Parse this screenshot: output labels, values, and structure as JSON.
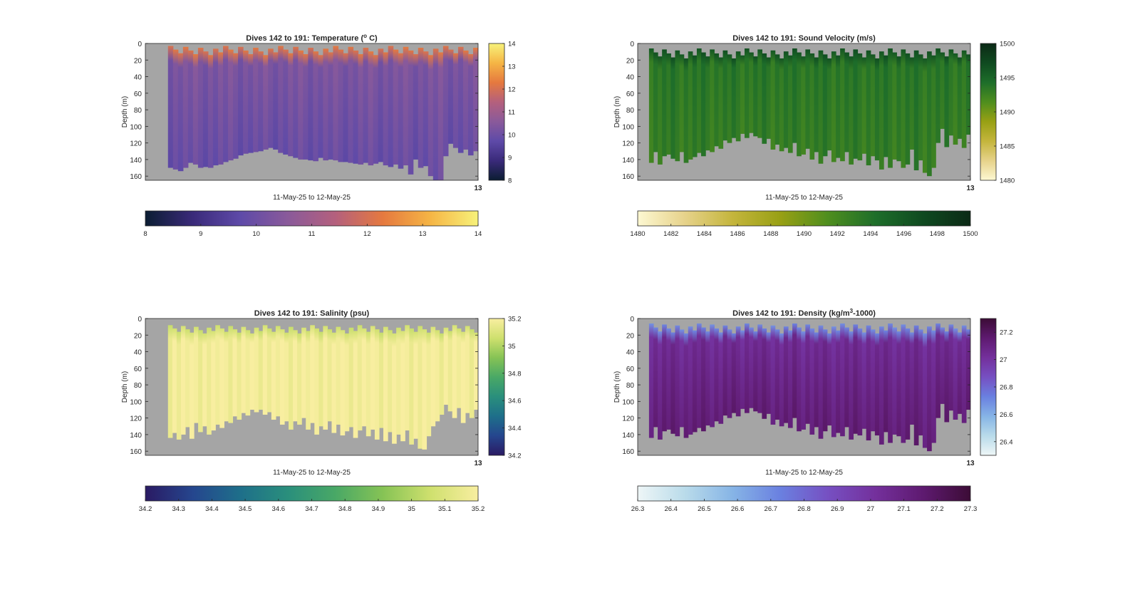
{
  "chart_data": [
    {
      "type": "heatmap",
      "title_main": "Dives 142 to 191: Temperature (",
      "title_sup": "o",
      "title_end": " C)",
      "xlabel": "11-May-25 to 12-May-25",
      "ylabel": "Depth (m)",
      "x_tick_label": "13",
      "ylim": [
        0,
        165
      ],
      "y_ticks": [
        0,
        20,
        40,
        60,
        80,
        100,
        120,
        140,
        160
      ],
      "clim": [
        8,
        14
      ],
      "colorbar_ticks": [
        8,
        9,
        10,
        11,
        12,
        13,
        14
      ],
      "hcolorbar_ticks": [
        8,
        9,
        10,
        11,
        12,
        13,
        14
      ],
      "colormap": [
        "#0b1d32",
        "#3a2a7a",
        "#5e4aa8",
        "#8a5a9a",
        "#b4607d",
        "#e5793f",
        "#f5b545",
        "#f7f27a"
      ],
      "surface_value": 12.2,
      "interior_value": 10.3,
      "deep_value": 9.9,
      "start_dive_offset": 4,
      "surface_depth_m": [
        3,
        14
      ],
      "bottom_depth_m": [
        150,
        152,
        154,
        150,
        144,
        146,
        150,
        149,
        150,
        147,
        146,
        143,
        141,
        139,
        135,
        133,
        132,
        131,
        130,
        128,
        126,
        128,
        132,
        134,
        136,
        138,
        140,
        140,
        141,
        142,
        138,
        141,
        140,
        141,
        143,
        143,
        144,
        145,
        146,
        144,
        147,
        145,
        143,
        147,
        149,
        146,
        151,
        147,
        158,
        140,
        150,
        148,
        160,
        165,
        165,
        136,
        121,
        126,
        132,
        128,
        135,
        130
      ]
    },
    {
      "type": "heatmap",
      "title_main": "Dives 142 to 191: Sound Velocity (m/s)",
      "title_sup": "",
      "title_end": "",
      "xlabel": "11-May-25 to 12-May-25",
      "ylabel": "Depth (m)",
      "x_tick_label": "13",
      "ylim": [
        0,
        165
      ],
      "y_ticks": [
        0,
        20,
        40,
        60,
        80,
        100,
        120,
        140,
        160
      ],
      "clim": [
        1480,
        1500
      ],
      "colorbar_ticks": [
        1480,
        1485,
        1490,
        1495,
        1500
      ],
      "hcolorbar_ticks": [
        1480,
        1482,
        1484,
        1486,
        1488,
        1490,
        1492,
        1494,
        1496,
        1498,
        1500
      ],
      "colormap": [
        "#fdf8d2",
        "#e6d28a",
        "#c4b53c",
        "#98a014",
        "#4f8e1e",
        "#1e6e2a",
        "#0f4a20",
        "#0c2a16"
      ],
      "surface_value": 1496.5,
      "interior_value": 1493.6,
      "deep_value": 1493.0,
      "start_dive_offset": 2,
      "surface_depth_m": [
        6,
        18
      ],
      "bottom_depth_m": [
        144,
        131,
        146,
        136,
        134,
        139,
        142,
        131,
        144,
        140,
        137,
        132,
        136,
        129,
        131,
        124,
        127,
        117,
        120,
        114,
        118,
        109,
        114,
        108,
        112,
        114,
        121,
        115,
        128,
        122,
        130,
        126,
        132,
        120,
        136,
        134,
        127,
        140,
        131,
        145,
        136,
        129,
        143,
        138,
        142,
        131,
        146,
        139,
        141,
        133,
        147,
        136,
        141,
        152,
        137,
        150,
        140,
        142,
        150,
        146,
        128,
        153,
        141,
        156,
        160,
        150,
        120,
        103,
        125,
        111,
        122,
        115,
        126,
        110
      ]
    },
    {
      "type": "heatmap",
      "title_main": "Dives 142 to 191: Salinity (psu)",
      "title_sup": "",
      "title_end": "",
      "xlabel": "11-May-25 to 12-May-25",
      "ylabel": "Depth (m)",
      "x_tick_label": "13",
      "ylim": [
        0,
        165
      ],
      "y_ticks": [
        0,
        20,
        40,
        60,
        80,
        100,
        120,
        140,
        160
      ],
      "clim": [
        34.2,
        35.2
      ],
      "colorbar_ticks": [
        34.2,
        34.4,
        34.6,
        34.8,
        35,
        35.2
      ],
      "hcolorbar_ticks": [
        34.2,
        34.3,
        34.4,
        34.5,
        34.6,
        34.7,
        34.8,
        34.9,
        35,
        35.1,
        35.2
      ],
      "colormap": [
        "#2a1a63",
        "#25468e",
        "#1e6f8a",
        "#2a8f7c",
        "#49a866",
        "#86c355",
        "#cfe06e",
        "#f8eea0"
      ],
      "surface_value": 35.06,
      "interior_value": 35.19,
      "deep_value": 35.19,
      "start_dive_offset": 4,
      "surface_depth_m": [
        8,
        18
      ],
      "bottom_depth_m": [
        144,
        138,
        146,
        140,
        131,
        145,
        126,
        137,
        130,
        140,
        135,
        128,
        132,
        124,
        126,
        118,
        122,
        114,
        117,
        110,
        113,
        110,
        116,
        113,
        122,
        118,
        128,
        124,
        134,
        124,
        128,
        120,
        134,
        126,
        140,
        130,
        134,
        124,
        138,
        128,
        141,
        136,
        131,
        144,
        135,
        130,
        142,
        134,
        146,
        132,
        148,
        137,
        151,
        140,
        148,
        135,
        152,
        145,
        157,
        158,
        142,
        130,
        124,
        116,
        104,
        112,
        120,
        108,
        126,
        114,
        120,
        110
      ]
    },
    {
      "type": "heatmap",
      "title_main": "Dives 142 to 191: Density (kg/m",
      "title_sup": "3",
      "title_end": "-1000)",
      "xlabel": "11-May-25 to 12-May-25",
      "ylabel": "Depth (m)",
      "x_tick_label": "13",
      "ylim": [
        0,
        165
      ],
      "y_ticks": [
        0,
        20,
        40,
        60,
        80,
        100,
        120,
        140,
        160
      ],
      "clim": [
        26.3,
        27.3
      ],
      "colorbar_ticks": [
        26.4,
        26.6,
        26.8,
        27,
        27.2
      ],
      "hcolorbar_ticks": [
        26.3,
        26.4,
        26.5,
        26.6,
        26.7,
        26.8,
        26.9,
        27,
        27.1,
        27.2,
        27.3
      ],
      "colormap": [
        "#eef6f7",
        "#b9dbea",
        "#86b4e6",
        "#6a80e0",
        "#7650c2",
        "#74309c",
        "#5e1a70",
        "#3c0c36"
      ],
      "surface_value": 26.7,
      "interior_value": 27.04,
      "deep_value": 27.14,
      "start_dive_offset": 2,
      "surface_depth_m": [
        6,
        18
      ],
      "bottom_depth_m": [
        144,
        131,
        146,
        136,
        134,
        139,
        142,
        131,
        144,
        140,
        137,
        132,
        136,
        129,
        131,
        124,
        127,
        117,
        120,
        114,
        118,
        109,
        114,
        108,
        112,
        114,
        121,
        115,
        128,
        122,
        130,
        126,
        132,
        120,
        136,
        134,
        127,
        140,
        131,
        145,
        136,
        129,
        143,
        138,
        142,
        131,
        146,
        139,
        141,
        133,
        147,
        136,
        141,
        152,
        137,
        150,
        140,
        142,
        150,
        146,
        128,
        153,
        141,
        156,
        160,
        150,
        120,
        103,
        125,
        111,
        122,
        115,
        126,
        110
      ]
    }
  ]
}
